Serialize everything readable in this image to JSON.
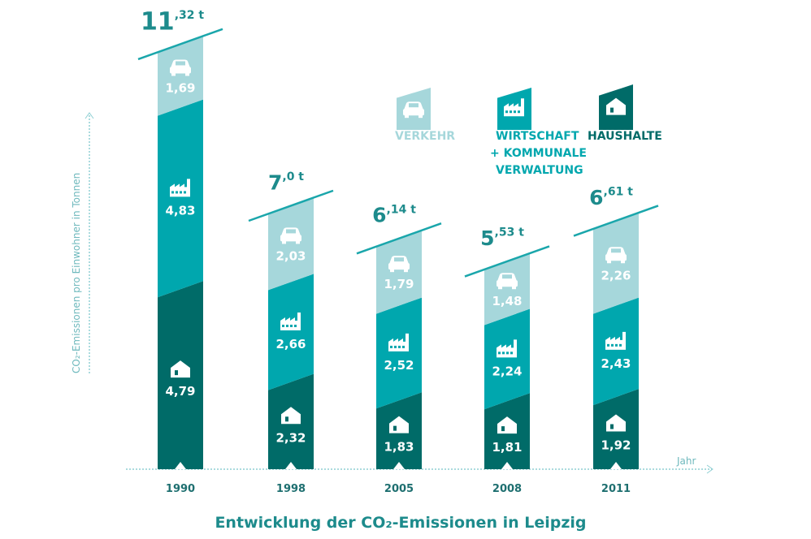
{
  "chart_data": {
    "type": "bar",
    "stacked": true,
    "title": "Entwicklung der CO₂-Emissionen in Leipzig",
    "xlabel": "Jahr",
    "ylabel": "CO₂-Emissionen pro Einwohner in Tonnen",
    "categories": [
      "1990",
      "1998",
      "2005",
      "2008",
      "2011"
    ],
    "totals": [
      {
        "int": "11",
        "dec": ",32 t"
      },
      {
        "int": "7",
        "dec": ",0 t"
      },
      {
        "int": "6",
        "dec": ",14 t"
      },
      {
        "int": "5",
        "dec": ",53 t"
      },
      {
        "int": "6",
        "dec": ",61 t"
      }
    ],
    "total_values": [
      11.32,
      7.0,
      6.14,
      5.53,
      6.61
    ],
    "series": [
      {
        "name": "HAUSHALTE",
        "icon": "house-icon",
        "color": "#006b68",
        "values": [
          4.79,
          2.32,
          1.83,
          1.81,
          1.92
        ],
        "labels": [
          "4,79",
          "2,32",
          "1,83",
          "1,81",
          "1,92"
        ]
      },
      {
        "name": "WIRTSCHAFT + KOMMUNALE VERWALTUNG",
        "icon": "factory-icon",
        "color": "#00a7ae",
        "values": [
          4.83,
          2.66,
          2.52,
          2.24,
          2.43
        ],
        "labels": [
          "4,83",
          "2,66",
          "2,52",
          "2,24",
          "2,43"
        ]
      },
      {
        "name": "VERKEHR",
        "icon": "car-icon",
        "color": "#a6d7db",
        "values": [
          1.69,
          2.03,
          1.79,
          1.48,
          2.26
        ],
        "labels": [
          "1,69",
          "2,03",
          "1,79",
          "1,48",
          "2,26"
        ]
      }
    ],
    "legend": {
      "placement": "top-right",
      "items": [
        {
          "lines": [
            "VERKEHR"
          ],
          "icon": "car-icon",
          "color": "#a6d7db"
        },
        {
          "lines": [
            "WIRTSCHAFT",
            "+ KOMMUNALE",
            "VERWALTUNG"
          ],
          "icon": "factory-icon",
          "color": "#00a7ae"
        },
        {
          "lines": [
            "HAUSHALTE"
          ],
          "icon": "house-icon",
          "color": "#006b68"
        }
      ]
    },
    "grid": false,
    "title_color": "#1d8b8c"
  }
}
